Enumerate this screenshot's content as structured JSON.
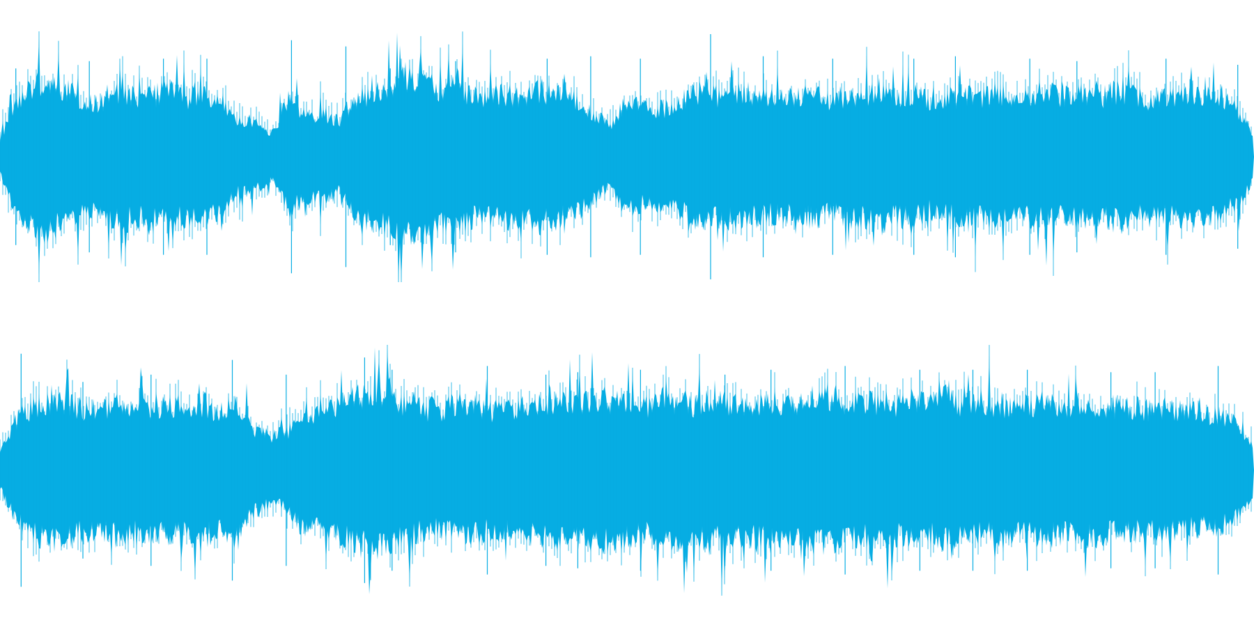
{
  "waveform": {
    "color": "#06ade3",
    "background": "#ffffff",
    "channels": [
      {
        "name": "",
        "amplitude_profile": [
          0.15,
          0.45,
          0.6,
          0.62,
          0.55,
          0.45,
          0.45,
          0.55,
          0.52,
          0.5,
          0.55,
          0.5,
          0.5,
          0.48,
          0.28,
          0.3,
          0.18,
          0.45,
          0.35,
          0.36,
          0.3,
          0.48,
          0.55,
          0.6,
          0.68,
          0.65,
          0.55,
          0.62,
          0.5,
          0.5,
          0.52,
          0.5,
          0.55,
          0.52,
          0.48,
          0.38,
          0.25,
          0.45,
          0.4,
          0.4,
          0.42,
          0.55,
          0.5,
          0.52,
          0.55,
          0.48,
          0.5,
          0.48,
          0.52,
          0.46,
          0.52,
          0.52,
          0.55,
          0.5,
          0.52,
          0.45,
          0.48,
          0.52,
          0.5,
          0.53,
          0.5,
          0.52,
          0.52,
          0.5,
          0.52,
          0.5,
          0.55,
          0.5,
          0.48,
          0.5,
          0.52,
          0.5,
          0.48,
          0.42,
          0.2
        ],
        "peaks": [
          0.72,
          0.78,
          0.8,
          0.8,
          0.95,
          0.9,
          0.72,
          0.78,
          0.8,
          0.82,
          0.8,
          1.0,
          0.82,
          0.8,
          0.8,
          0.82,
          0.8,
          0.78,
          0.8,
          0.75
        ]
      },
      {
        "name": "",
        "amplitude_profile": [
          0.15,
          0.42,
          0.55,
          0.58,
          0.55,
          0.5,
          0.52,
          0.55,
          0.52,
          0.5,
          0.55,
          0.52,
          0.55,
          0.5,
          0.58,
          0.35,
          0.28,
          0.32,
          0.5,
          0.48,
          0.52,
          0.6,
          0.65,
          0.62,
          0.55,
          0.52,
          0.5,
          0.55,
          0.55,
          0.5,
          0.5,
          0.52,
          0.55,
          0.6,
          0.55,
          0.6,
          0.58,
          0.55,
          0.52,
          0.6,
          0.58,
          0.55,
          0.6,
          0.55,
          0.55,
          0.58,
          0.58,
          0.55,
          0.6,
          0.62,
          0.58,
          0.55,
          0.58,
          0.55,
          0.58,
          0.55,
          0.6,
          0.55,
          0.52,
          0.55,
          0.52,
          0.55,
          0.55,
          0.52,
          0.55,
          0.55,
          0.52,
          0.52,
          0.5,
          0.52,
          0.5,
          0.48,
          0.45,
          0.4,
          0.2
        ],
        "peaks": [
          0.95,
          0.72,
          0.78,
          0.9,
          0.78,
          0.92,
          0.82,
          0.85,
          0.78,
          0.8,
          0.82,
          0.78,
          0.82,
          0.85,
          0.82,
          0.82,
          0.82,
          0.8,
          0.8,
          0.85
        ]
      }
    ]
  }
}
